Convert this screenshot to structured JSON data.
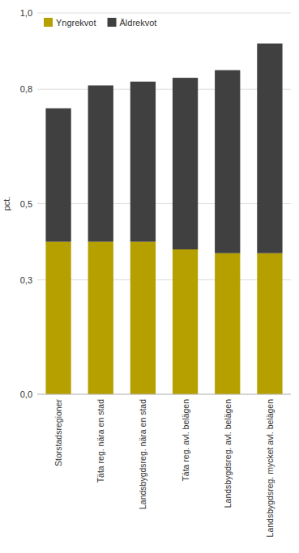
{
  "chart_data": {
    "type": "bar",
    "stacked": true,
    "categories": [
      "Storstadsregioner",
      "Täta reg. nära en stad",
      "Landsbygdsreg. nära en stad",
      "Täta reg. avl. belägen",
      "Landsbygdsreg. avl. belägen",
      "Landsbygdsreg. mycket avl. belägen"
    ],
    "series": [
      {
        "name": "Yngrekvot",
        "color": "#b5a000",
        "values": [
          0.4,
          0.4,
          0.4,
          0.38,
          0.37,
          0.37
        ]
      },
      {
        "name": "Äldrekvot",
        "color": "#404040",
        "values": [
          0.35,
          0.41,
          0.42,
          0.45,
          0.48,
          0.55
        ]
      }
    ],
    "y_label": "pct.",
    "ylim": [
      0.0,
      1.0
    ],
    "yticks": [
      {
        "value": 0.0,
        "label": "0,0"
      },
      {
        "value": 0.3,
        "label": "0,3"
      },
      {
        "value": 0.5,
        "label": "0,5"
      },
      {
        "value": 0.8,
        "label": "0,8"
      },
      {
        "value": 1.0,
        "label": "1,0"
      }
    ],
    "grid": true,
    "legend": "upper left"
  }
}
